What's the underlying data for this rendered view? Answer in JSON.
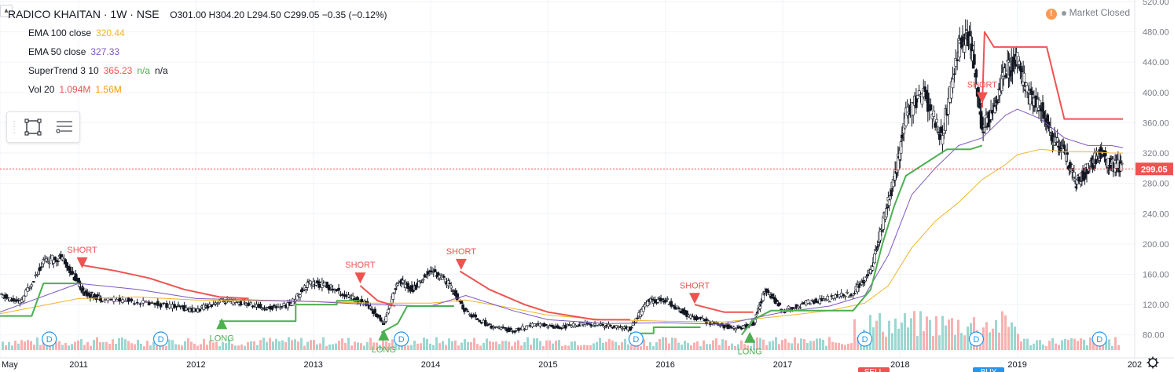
{
  "header": {
    "symbol_line": "RADICO KHAITAN · 1W · NSE",
    "ohlc": "O301.00 H304.20 L294.50 C299.05 −0.35 (−0.12%)",
    "collapse_icon": "chevron-up-icon"
  },
  "status": {
    "label": "Market Closed"
  },
  "indicators": [
    {
      "name": "EMA 100 close",
      "values": [
        "320.44"
      ],
      "colors": [
        "#f0b429"
      ]
    },
    {
      "name": "EMA 50 close",
      "values": [
        "327.33"
      ],
      "colors": [
        "#7e57c2"
      ]
    },
    {
      "name": "SuperTrend 3 10",
      "values": [
        "365.23",
        "n/a",
        "n/a"
      ],
      "colors": [
        "#ef5350",
        "#4caf50",
        "#131722"
      ]
    },
    {
      "name": "Vol 20",
      "values": [
        "1.094M",
        "1.56M"
      ],
      "colors": [
        "#ef5350",
        "#ff9800"
      ]
    }
  ],
  "toolbox": {
    "icons": [
      "drag-handle-icon",
      "rectangle-icon",
      "list-settings-icon"
    ]
  },
  "chart_data": {
    "type": "line",
    "title": "RADICO KHAITAN · 1W · NSE",
    "colors": {
      "ema100": "#f0b429",
      "ema50": "#7e57c2",
      "st_up": "#4caf50",
      "st_down": "#ef5350",
      "price": "#131722",
      "last_price_bg": "#ef5350"
    },
    "ylim": [
      60,
      520
    ],
    "y_ticks": [
      "80.00",
      "120.00",
      "160.00",
      "200.00",
      "240.00",
      "280.00",
      "320.00",
      "360.00",
      "400.00",
      "440.00",
      "480.00",
      "520.00"
    ],
    "y_tick_values": [
      80,
      120,
      160,
      200,
      240,
      280,
      320,
      360,
      400,
      440,
      480,
      520
    ],
    "x_ticks": [
      "May",
      "2011",
      "2012",
      "2013",
      "2014",
      "2015",
      "2016",
      "2017",
      "2018",
      "2019",
      "202"
    ],
    "x_tick_dates": [
      2010.33,
      2011.0,
      2012.0,
      2013.0,
      2014.0,
      2015.0,
      2016.0,
      2017.0,
      2018.0,
      2019.0,
      2020.0
    ],
    "xlim": [
      2010.33,
      2020.0
    ],
    "last_price": {
      "label": "299.05",
      "value": 299.05
    },
    "series": [
      {
        "key": "price",
        "x": [
          2010.33,
          2010.5,
          2010.7,
          2010.85,
          2011.0,
          2011.05,
          2011.2,
          2011.5,
          2011.8,
          2012.0,
          2012.2,
          2012.4,
          2012.6,
          2012.8,
          2012.95,
          2013.1,
          2013.3,
          2013.45,
          2013.6,
          2013.72,
          2013.85,
          2014.0,
          2014.15,
          2014.3,
          2014.5,
          2014.7,
          2014.9,
          2015.1,
          2015.3,
          2015.5,
          2015.7,
          2015.85,
          2016.0,
          2016.2,
          2016.4,
          2016.6,
          2016.75,
          2016.85,
          2017.0,
          2017.2,
          2017.4,
          2017.6,
          2017.75,
          2017.85,
          2017.95,
          2018.05,
          2018.2,
          2018.35,
          2018.5,
          2018.6,
          2018.7,
          2018.8,
          2018.9,
          2019.0,
          2019.1,
          2019.2,
          2019.3,
          2019.4,
          2019.5,
          2019.6,
          2019.7,
          2019.8,
          2019.9
        ],
        "values": [
          132,
          122,
          178,
          182,
          148,
          135,
          128,
          124,
          118,
          112,
          125,
          122,
          115,
          120,
          148,
          146,
          130,
          122,
          95,
          152,
          140,
          166,
          148,
          110,
          92,
          85,
          94,
          90,
          95,
          92,
          88,
          125,
          126,
          105,
          95,
          88,
          95,
          140,
          112,
          122,
          128,
          135,
          165,
          225,
          285,
          370,
          400,
          340,
          460,
          472,
          350,
          380,
          430,
          440,
          395,
          380,
          340,
          320,
          280,
          300,
          320,
          305,
          300
        ]
      },
      {
        "key": "ema50",
        "x": [
          2010.33,
          2011.0,
          2011.5,
          2012.0,
          2012.5,
          2013.0,
          2013.5,
          2014.0,
          2014.3,
          2014.7,
          2015.0,
          2015.5,
          2016.0,
          2016.5,
          2017.0,
          2017.4,
          2017.7,
          2017.9,
          2018.1,
          2018.3,
          2018.5,
          2018.7,
          2018.9,
          2019.0,
          2019.2,
          2019.4,
          2019.6,
          2019.8,
          2019.9
        ],
        "values": [
          110,
          148,
          140,
          128,
          126,
          124,
          120,
          118,
          132,
          112,
          100,
          95,
          96,
          94,
          110,
          118,
          132,
          185,
          265,
          300,
          330,
          340,
          370,
          378,
          365,
          340,
          330,
          330,
          327
        ]
      },
      {
        "key": "ema100",
        "x": [
          2010.33,
          2011.0,
          2011.5,
          2012.0,
          2012.5,
          2013.0,
          2013.5,
          2014.0,
          2014.3,
          2014.7,
          2015.0,
          2015.5,
          2016.0,
          2016.5,
          2017.0,
          2017.4,
          2017.7,
          2017.9,
          2018.1,
          2018.3,
          2018.5,
          2018.7,
          2018.9,
          2019.0,
          2019.2,
          2019.4,
          2019.6,
          2019.8,
          2019.9
        ],
        "values": [
          108,
          128,
          130,
          126,
          125,
          124,
          122,
          122,
          126,
          115,
          106,
          100,
          98,
          97,
          105,
          112,
          122,
          145,
          195,
          230,
          255,
          285,
          305,
          318,
          325,
          322,
          322,
          320,
          320
        ]
      }
    ],
    "supertrend_up_segments": [
      {
        "x": [
          2010.33,
          2010.6,
          2010.7,
          2011.0
        ],
        "values": [
          105,
          105,
          148,
          148
        ]
      },
      {
        "x": [
          2012.2,
          2012.55,
          2012.55,
          2012.85,
          2012.85,
          2013.2,
          2013.2,
          2013.4
        ],
        "values": [
          98,
          98,
          98,
          98,
          120,
          120,
          125,
          125
        ]
      },
      {
        "x": [
          2013.58,
          2013.72,
          2013.8,
          2013.8,
          2014.2
        ],
        "values": [
          83,
          95,
          118,
          118,
          118
        ]
      },
      {
        "x": [
          2015.7,
          2015.9,
          2015.9,
          2016.3
        ],
        "values": [
          82,
          82,
          90,
          90
        ]
      },
      {
        "x": [
          2016.65,
          2016.75,
          2016.9,
          2017.0,
          2017.3,
          2017.6,
          2017.75,
          2017.85,
          2017.95,
          2018.05,
          2018.2,
          2018.4,
          2018.6,
          2018.7
        ],
        "values": [
          80,
          100,
          112,
          112,
          112,
          112,
          140,
          200,
          250,
          290,
          305,
          325,
          325,
          330
        ]
      }
    ],
    "supertrend_down_segments": [
      {
        "x": [
          2011.03,
          2011.3,
          2011.6,
          2011.9,
          2012.2,
          2012.45
        ],
        "values": [
          172,
          165,
          155,
          140,
          130,
          128
        ]
      },
      {
        "x": [
          2013.4,
          2013.55,
          2013.7
        ],
        "values": [
          145,
          125,
          118
        ]
      },
      {
        "x": [
          2014.25,
          2014.5,
          2014.8,
          2015.0,
          2015.4,
          2015.7
        ],
        "values": [
          164,
          140,
          120,
          110,
          100,
          100
        ]
      },
      {
        "x": [
          2016.25,
          2016.5,
          2016.75
        ],
        "values": [
          120,
          110,
          110
        ]
      },
      {
        "x": [
          2018.7,
          2018.72,
          2018.8,
          2019.1,
          2019.25,
          2019.4,
          2019.85,
          2019.9
        ],
        "values": [
          380,
          480,
          460,
          460,
          460,
          365,
          365,
          365
        ]
      }
    ],
    "signals": [
      {
        "type": "short",
        "label": "SHORT",
        "x": 2011.03,
        "y": 172
      },
      {
        "type": "long",
        "label": "LONG",
        "x": 2012.22,
        "y": 98
      },
      {
        "type": "short",
        "label": "SHORT",
        "x": 2013.4,
        "y": 152
      },
      {
        "type": "long",
        "label": "LONG",
        "x": 2013.6,
        "y": 83
      },
      {
        "type": "short",
        "label": "SHORT",
        "x": 2014.26,
        "y": 170
      },
      {
        "type": "short",
        "label": "SHORT",
        "x": 2016.25,
        "y": 125
      },
      {
        "type": "long",
        "label": "LONG",
        "x": 2016.72,
        "y": 80
      },
      {
        "type": "short",
        "label": "SHORT",
        "x": 2018.7,
        "y": 390
      }
    ],
    "dividend_markers": {
      "label": "D",
      "x": [
        2010.75,
        2011.7,
        2013.75,
        2015.75,
        2017.7,
        2018.65,
        2019.7
      ]
    },
    "volume_scale_max": 1.0,
    "bottom_labels": [
      "SELL",
      "BUY"
    ]
  }
}
